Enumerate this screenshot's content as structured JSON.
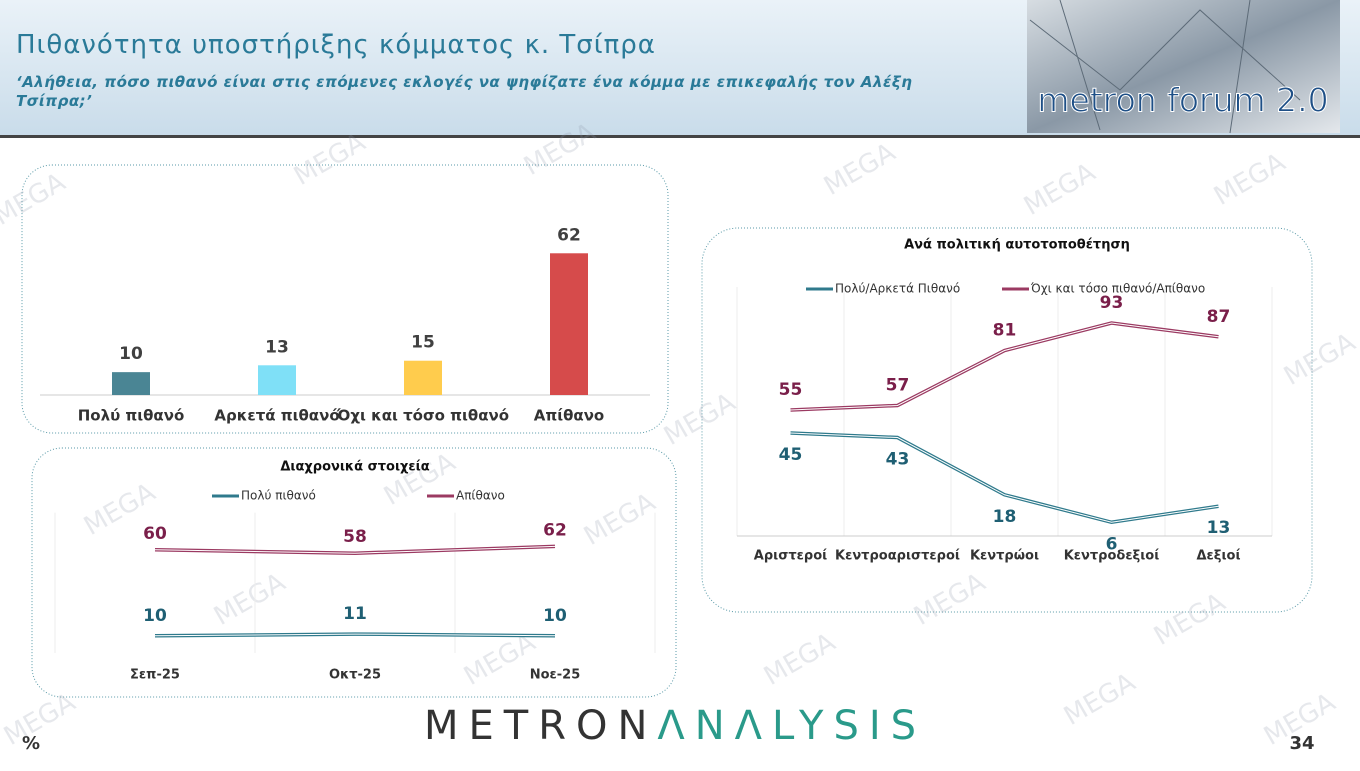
{
  "header": {
    "title": "Πιθανότητα υποστήριξης κόμματος κ. Τσίπρα",
    "subtitle": "‘Αλήθεια, πόσο πιθανό είναι στις επόμενες εκλογές να ψηφίζατε ένα κόμμα με επικεφαλής τον Αλέξη Τσίπρα;’",
    "logo": "metron forum 2.0"
  },
  "watermark": "MEGA",
  "chart_data": [
    {
      "type": "bar",
      "categories": [
        "Πολύ πιθανό",
        "Αρκετά πιθανό",
        "Όχι και τόσο πιθανό",
        "Απίθανο"
      ],
      "values": [
        10,
        13,
        15,
        62
      ],
      "colors": [
        "#4a8594",
        "#7fe0f7",
        "#ffcc4d",
        "#d64b4b"
      ],
      "ylim": [
        0,
        70
      ]
    },
    {
      "type": "line",
      "title": "Διαχρονικά στοιχεία",
      "categories": [
        "Σεπ-25",
        "Οκτ-25",
        "Νοε-25"
      ],
      "series": [
        {
          "name": "Πολύ πιθανό",
          "color": "#2f7a8c",
          "values": [
            10,
            11,
            10
          ]
        },
        {
          "name": "Απίθανο",
          "color": "#9b3a62",
          "values": [
            60,
            58,
            62
          ]
        }
      ],
      "ylim": [
        0,
        70
      ]
    },
    {
      "type": "line",
      "title": "Ανά πολιτική αυτοτοποθέτηση",
      "categories": [
        "Αριστεροί",
        "Κεντροαριστεροί",
        "Κεντρώοι",
        "Κεντροδεξιοί",
        "Δεξιοί"
      ],
      "series": [
        {
          "name": "Πολύ/Αρκετά Πιθανό",
          "color": "#2f7a8c",
          "values": [
            45,
            43,
            18,
            6,
            13
          ]
        },
        {
          "name": "Όχι και τόσο πιθανό/Απίθανο",
          "color": "#9b3a62",
          "values": [
            55,
            57,
            81,
            93,
            87
          ]
        }
      ],
      "ylim": [
        0,
        100
      ]
    }
  ],
  "footer": {
    "unit": "%",
    "brand": [
      "METRON",
      "ΛNΛLYSIS"
    ],
    "page": "34"
  }
}
